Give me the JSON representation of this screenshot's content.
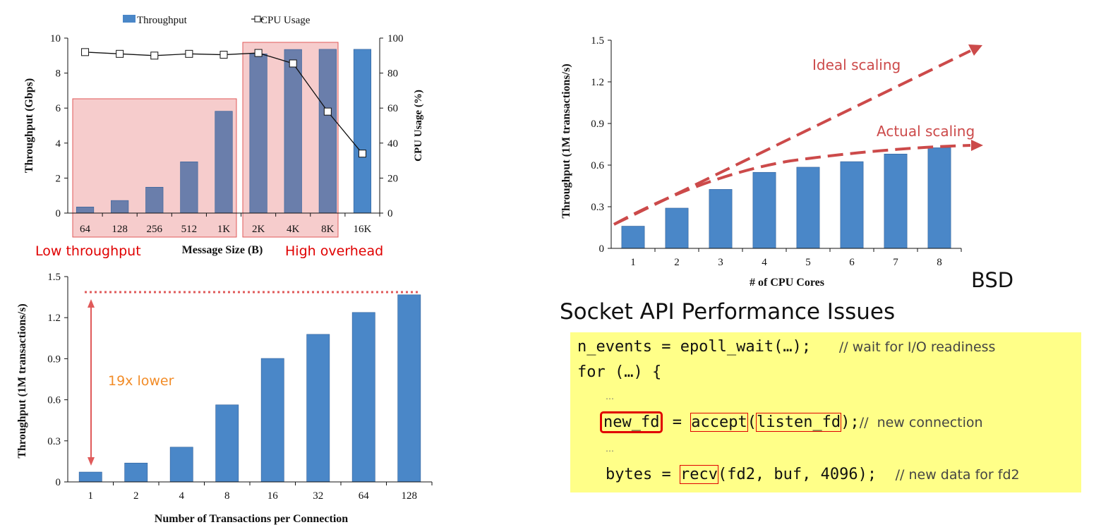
{
  "colors": {
    "bar": "#4a87c8",
    "bar_overlay": "#6a7eab",
    "highlight": "#f6cccc",
    "highlight_border": "#e05a5a",
    "red": "#e00000",
    "orange": "#f28c28",
    "code_bg": "#ffff88"
  },
  "chart_data": [
    {
      "type": "bar",
      "categories": [
        "64",
        "128",
        "256",
        "512",
        "1K",
        "2K",
        "4K",
        "8K",
        "16K"
      ],
      "series": [
        {
          "name": "Throughput",
          "values": [
            0.35,
            0.72,
            1.48,
            2.93,
            5.82,
            9.1,
            9.35,
            9.36,
            9.36
          ]
        },
        {
          "name": "CPU Usage",
          "type": "line",
          "axis": "right",
          "values": [
            92,
            91,
            90,
            91,
            90.5,
            91.5,
            85.5,
            58,
            34
          ]
        }
      ],
      "xlabel": "Message Size (B)",
      "ylabel": "Throughput (Gbps)",
      "y2label": "CPU Usage (%)",
      "ylim": [
        0,
        10
      ],
      "y2lim": [
        0,
        100
      ],
      "yticks": [
        "0",
        "2",
        "4",
        "6",
        "8",
        "10"
      ],
      "y2ticks": [
        "0",
        "20",
        "40",
        "60",
        "80",
        "100"
      ],
      "legend": [
        "Throughput",
        "CPU Usage"
      ],
      "annotations": {
        "low": "Low throughput",
        "high": "High overhead"
      }
    },
    {
      "type": "bar",
      "categories": [
        "1",
        "2",
        "4",
        "8",
        "16",
        "32",
        "64",
        "128"
      ],
      "values": [
        0.072,
        0.138,
        0.254,
        0.563,
        0.902,
        1.078,
        1.238,
        1.367
      ],
      "xlabel": "Number of Transactions per Connection",
      "ylabel": "Throughput (1M transactions/s)",
      "ylim": [
        0,
        1.5
      ],
      "yticks": [
        "0",
        "0.3",
        "0.6",
        "0.9",
        "1.2",
        "1.5"
      ],
      "annotations": {
        "gap": "19x lower"
      }
    },
    {
      "type": "bar",
      "categories": [
        "1",
        "2",
        "3",
        "4",
        "5",
        "6",
        "7",
        "8"
      ],
      "values": [
        0.16,
        0.29,
        0.425,
        0.548,
        0.585,
        0.625,
        0.68,
        0.725
      ],
      "xlabel": "# of CPU Cores",
      "ylabel": "Throughput (1M transactions/s)",
      "ylim": [
        0,
        1.5
      ],
      "yticks": [
        "0",
        "0.3",
        "0.6",
        "0.9",
        "1.2",
        "1.5"
      ],
      "annotations": {
        "ideal": "Ideal scaling",
        "actual": "Actual scaling"
      }
    }
  ],
  "slide": {
    "bsd": "BSD",
    "title": "Socket API Performance Issues"
  },
  "code": {
    "line1": "n_events = epoll_wait(…);",
    "comment1": "// wait for I/O readiness",
    "line2": "for (…) {",
    "ellipsis": "…",
    "newfd": "new_fd",
    "eq": " = ",
    "accept": "accept",
    "paren_open": "(",
    "listen_fd": "listen_fd",
    "paren_close": ");",
    "comment2": "//  new connection",
    "bytes_pre": "bytes = ",
    "recv": "recv",
    "bytes_post": "(fd2, buf, 4096);",
    "comment3": "// new data for fd2"
  }
}
